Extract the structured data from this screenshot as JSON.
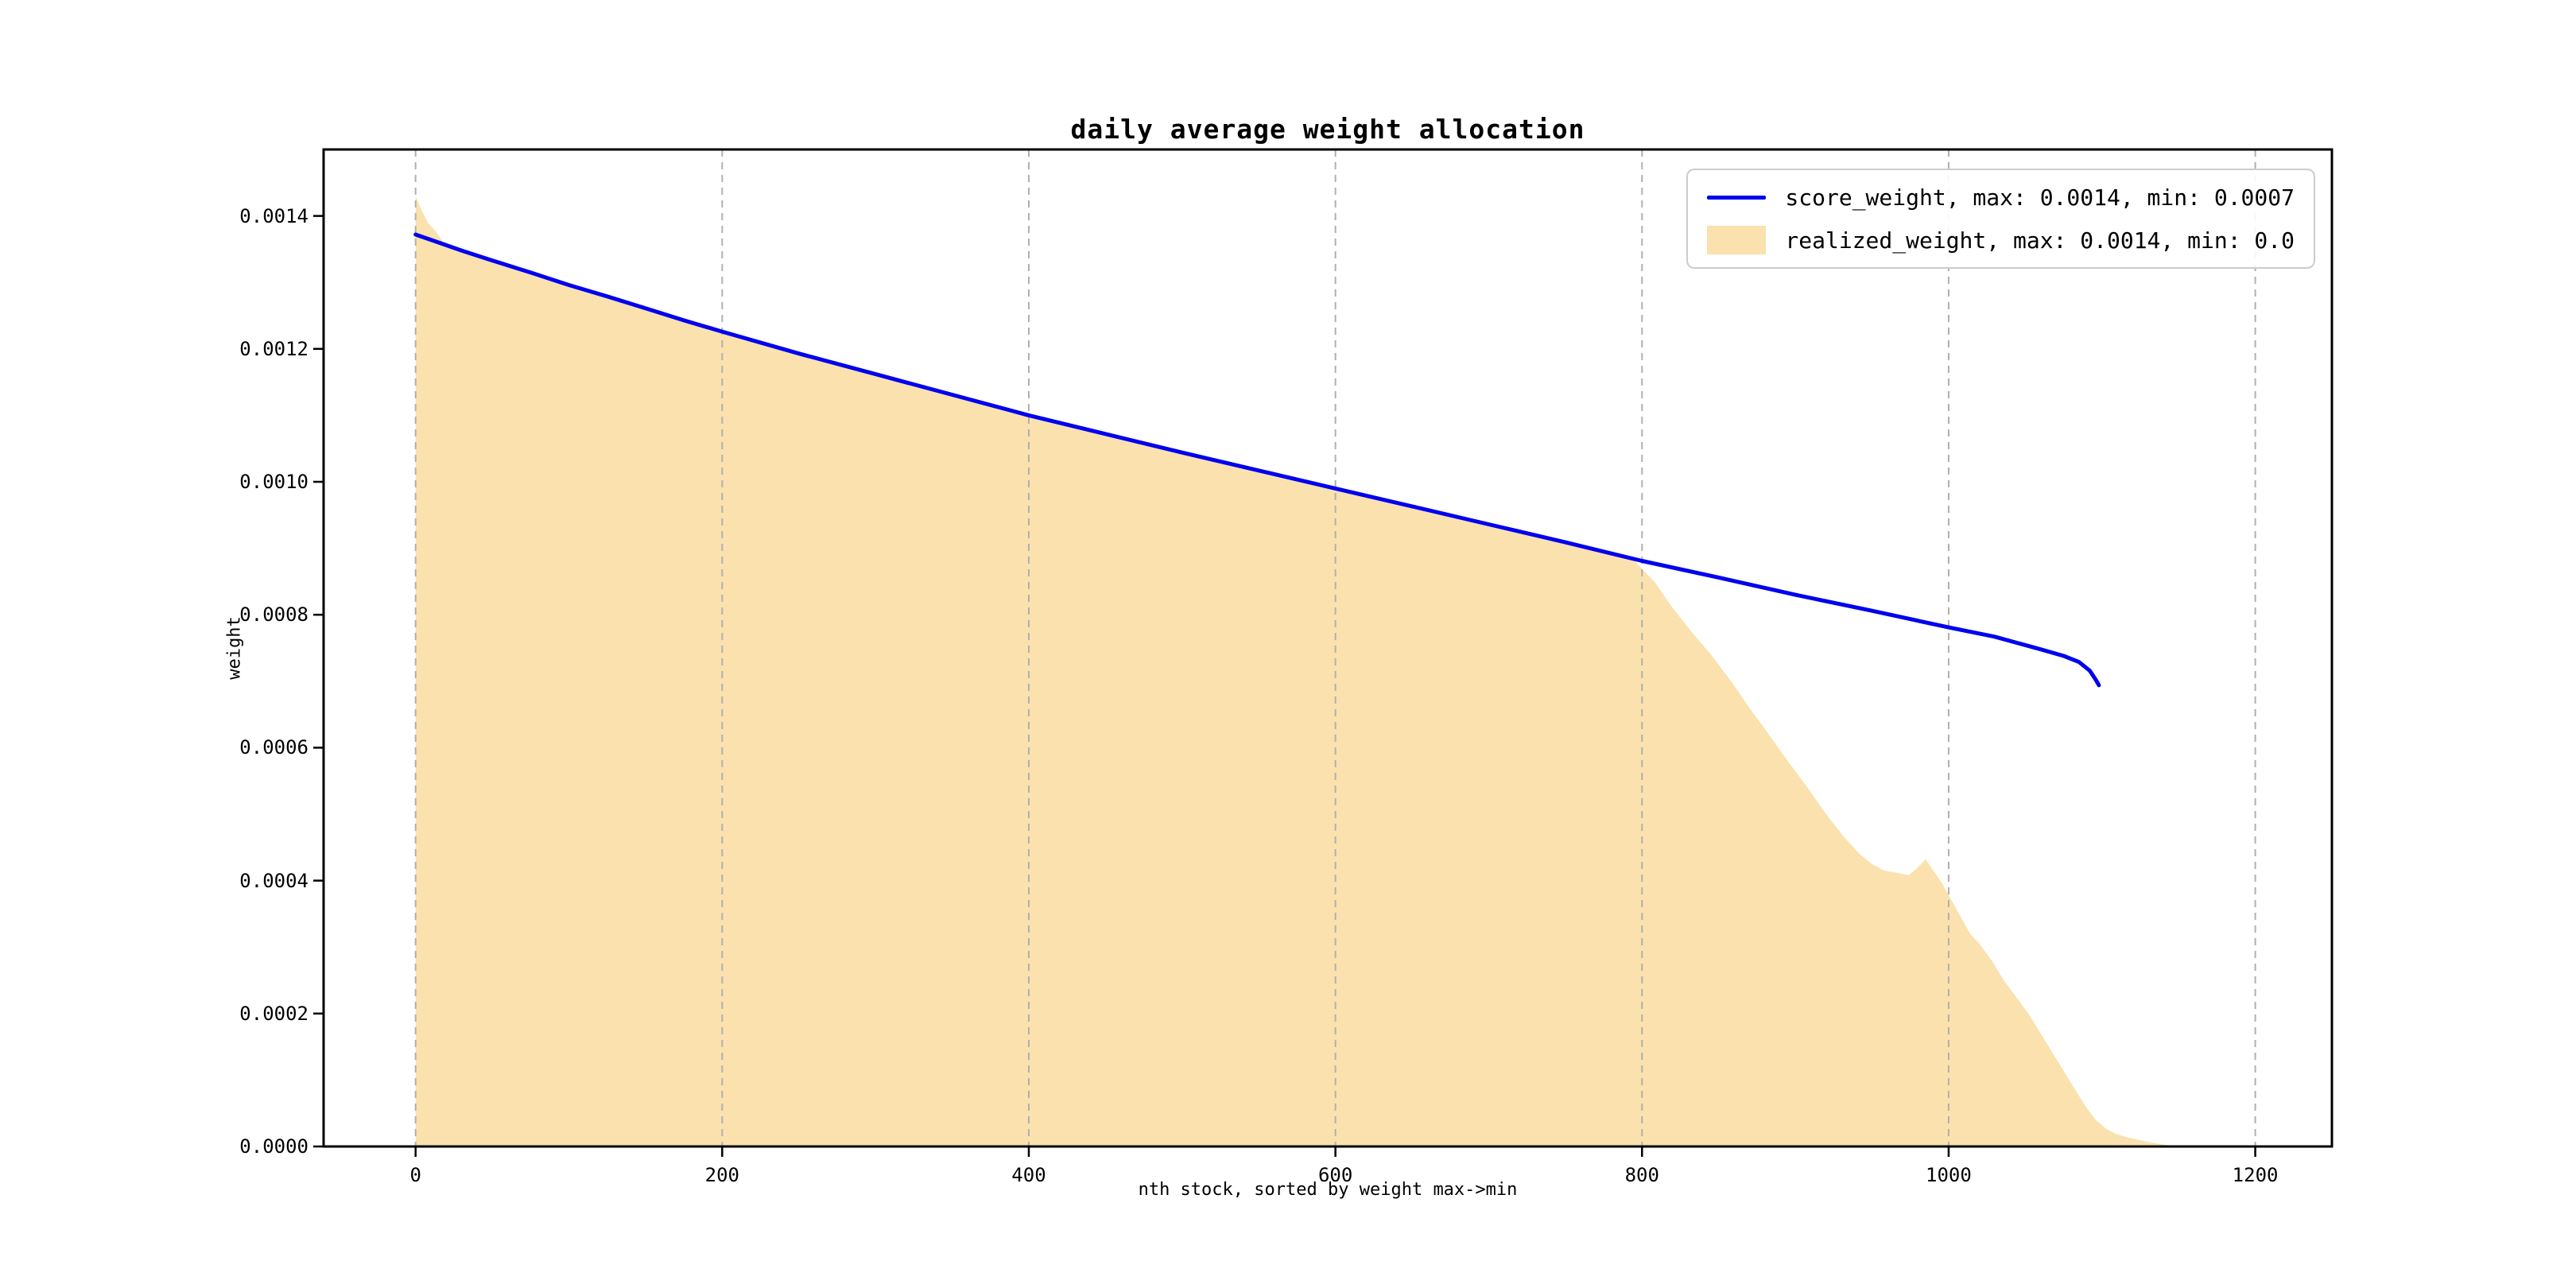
{
  "figure": {
    "title": "daily average weight allocation",
    "xlabel": "nth stock, sorted by weight max->min",
    "ylabel": "weight"
  },
  "legend": {
    "position": "upper right",
    "entries": [
      {
        "label": "score_weight, max: 0.0014, min: 0.0007",
        "type": "line",
        "color": "#0000ee"
      },
      {
        "label": "realized_weight, max: 0.0014, min: 0.0",
        "type": "patch",
        "color": "#fae1ae"
      }
    ]
  },
  "chart_data": {
    "type": "area",
    "title": "daily average weight allocation",
    "xlabel": "nth stock, sorted by weight max->min",
    "ylabel": "weight",
    "xlim": [
      -60,
      1250
    ],
    "ylim": [
      0,
      0.0015
    ],
    "xticks": [
      0,
      200,
      400,
      600,
      800,
      1000,
      1200
    ],
    "yticks": [
      {
        "value": 0.0,
        "label": "0.0000"
      },
      {
        "value": 0.0002,
        "label": "0.0002"
      },
      {
        "value": 0.0004,
        "label": "0.0004"
      },
      {
        "value": 0.0006,
        "label": "0.0006"
      },
      {
        "value": 0.0008,
        "label": "0.0008"
      },
      {
        "value": 0.001,
        "label": "0.0010"
      },
      {
        "value": 0.0012,
        "label": "0.0012"
      },
      {
        "value": 0.0014,
        "label": "0.0014"
      }
    ],
    "grid": "vertical-dashed",
    "grid_color": "#b0b0b0",
    "legend_position": "upper right",
    "series": [
      {
        "name": "score_weight",
        "style": "line",
        "color": "#0000ee",
        "max": 0.0014,
        "min": 0.0007,
        "points": [
          [
            0,
            0.001372
          ],
          [
            15,
            0.00136
          ],
          [
            30,
            0.001348
          ],
          [
            50,
            0.001333
          ],
          [
            75,
            0.001315
          ],
          [
            100,
            0.001296
          ],
          [
            125,
            0.001279
          ],
          [
            150,
            0.001261
          ],
          [
            175,
            0.001243
          ],
          [
            200,
            0.001226
          ],
          [
            250,
            0.001193
          ],
          [
            300,
            0.001162
          ],
          [
            350,
            0.001131
          ],
          [
            400,
            0.0011
          ],
          [
            450,
            0.001072
          ],
          [
            500,
            0.001044
          ],
          [
            550,
            0.001017
          ],
          [
            600,
            0.00099
          ],
          [
            650,
            0.000963
          ],
          [
            700,
            0.000936
          ],
          [
            750,
            0.000909
          ],
          [
            800,
            0.000881
          ],
          [
            850,
            0.000856
          ],
          [
            900,
            0.00083
          ],
          [
            950,
            0.000806
          ],
          [
            1000,
            0.000781
          ],
          [
            1030,
            0.000767
          ],
          [
            1060,
            0.000748
          ],
          [
            1075,
            0.000738
          ],
          [
            1085,
            0.000729
          ],
          [
            1092,
            0.000716
          ],
          [
            1096,
            0.000702
          ],
          [
            1098,
            0.000694
          ]
        ]
      },
      {
        "name": "realized_weight",
        "style": "filled-area",
        "color": "#fae1ae",
        "max": 0.0014,
        "min": 0.0,
        "points": [
          [
            0,
            0.00143
          ],
          [
            4,
            0.001408
          ],
          [
            8,
            0.00139
          ],
          [
            14,
            0.001374
          ],
          [
            20,
            0.001354
          ],
          [
            50,
            0.00133
          ],
          [
            100,
            0.001293
          ],
          [
            150,
            0.001258
          ],
          [
            200,
            0.001223
          ],
          [
            250,
            0.00119
          ],
          [
            300,
            0.001159
          ],
          [
            350,
            0.001128
          ],
          [
            400,
            0.001097
          ],
          [
            450,
            0.001069
          ],
          [
            500,
            0.001041
          ],
          [
            550,
            0.001014
          ],
          [
            600,
            0.000987
          ],
          [
            650,
            0.00096
          ],
          [
            700,
            0.000933
          ],
          [
            750,
            0.000906
          ],
          [
            780,
            0.000891
          ],
          [
            795,
            0.000881
          ],
          [
            808,
            0.00085
          ],
          [
            820,
            0.00081
          ],
          [
            832,
            0.000775
          ],
          [
            845,
            0.00074
          ],
          [
            858,
            0.0007
          ],
          [
            870,
            0.00066
          ],
          [
            882,
            0.000622
          ],
          [
            895,
            0.00058
          ],
          [
            908,
            0.00054
          ],
          [
            920,
            0.0005
          ],
          [
            932,
            0.000465
          ],
          [
            942,
            0.00044
          ],
          [
            950,
            0.000425
          ],
          [
            958,
            0.000415
          ],
          [
            966,
            0.000412
          ],
          [
            974,
            0.000408
          ],
          [
            980,
            0.00042
          ],
          [
            985,
            0.000432
          ],
          [
            990,
            0.000415
          ],
          [
            996,
            0.000395
          ],
          [
            1002,
            0.00037
          ],
          [
            1008,
            0.000345
          ],
          [
            1014,
            0.00032
          ],
          [
            1020,
            0.000305
          ],
          [
            1028,
            0.00028
          ],
          [
            1036,
            0.00025
          ],
          [
            1044,
            0.000225
          ],
          [
            1052,
            0.0002
          ],
          [
            1060,
            0.00017
          ],
          [
            1068,
            0.00014
          ],
          [
            1076,
            0.00011
          ],
          [
            1084,
            8e-05
          ],
          [
            1090,
            5.8e-05
          ],
          [
            1096,
            4e-05
          ],
          [
            1102,
            2.8e-05
          ],
          [
            1108,
            2e-05
          ],
          [
            1116,
            1.4e-05
          ],
          [
            1124,
            1e-05
          ],
          [
            1132,
            6e-06
          ],
          [
            1140,
            3e-06
          ],
          [
            1148,
            0.0
          ]
        ]
      }
    ]
  }
}
